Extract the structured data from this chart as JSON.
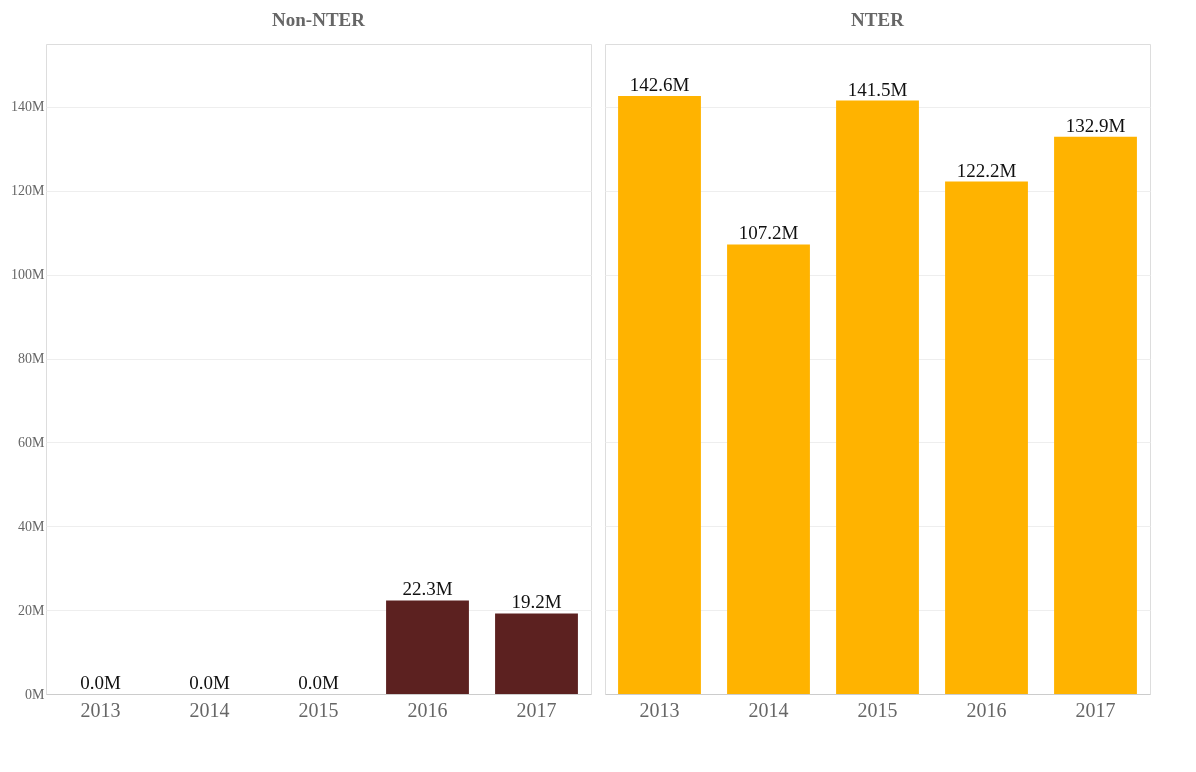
{
  "chart_data": [
    {
      "type": "bar",
      "title": "Non-NTER",
      "categories": [
        "2013",
        "2014",
        "2015",
        "2016",
        "2017"
      ],
      "values": [
        0,
        0,
        0,
        22.3,
        19.2
      ],
      "color": "#5c2120",
      "value_labels": [
        "0.0M",
        "0.0M",
        "0.0M",
        "22.3M",
        "19.2M"
      ],
      "ylim": [
        0,
        155
      ],
      "yticks": [
        {
          "value": 0,
          "label": "0M"
        },
        {
          "value": 20,
          "label": "20M"
        },
        {
          "value": 40,
          "label": "40M"
        },
        {
          "value": 60,
          "label": "60M"
        },
        {
          "value": 80,
          "label": "80M"
        },
        {
          "value": 100,
          "label": "100M"
        },
        {
          "value": 120,
          "label": "120M"
        },
        {
          "value": 140,
          "label": "140M"
        }
      ],
      "grid": "y"
    },
    {
      "type": "bar",
      "title": "NTER",
      "categories": [
        "2013",
        "2014",
        "2015",
        "2016",
        "2017"
      ],
      "values": [
        142.6,
        107.2,
        141.5,
        122.2,
        132.9
      ],
      "color": "#ffb300",
      "value_labels": [
        "142.6M",
        "107.2M",
        "141.5M",
        "122.2M",
        "132.9M"
      ],
      "ylim": [
        0,
        155
      ],
      "yticks": [
        {
          "value": 0,
          "label": null
        },
        {
          "value": 20,
          "label": null
        },
        {
          "value": 40,
          "label": null
        },
        {
          "value": 60,
          "label": null
        },
        {
          "value": 80,
          "label": null
        },
        {
          "value": 100,
          "label": null
        },
        {
          "value": 120,
          "label": null
        },
        {
          "value": 140,
          "label": null
        }
      ],
      "grid": "y",
      "tick_labels": "x"
    }
  ]
}
